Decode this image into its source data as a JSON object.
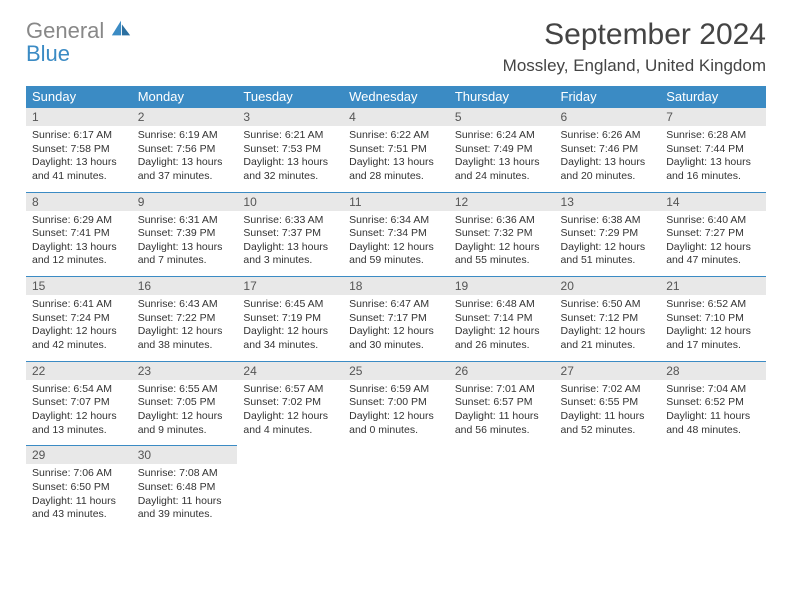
{
  "brand": {
    "line1": "General",
    "line2": "Blue"
  },
  "title": "September 2024",
  "location": "Mossley, England, United Kingdom",
  "colors": {
    "header_bg": "#3b8bc4",
    "header_text": "#ffffff",
    "daynum_bg": "#e8e8e8",
    "rule": "#3b8bc4",
    "logo_gray": "#888888",
    "logo_blue": "#3b8bc4"
  },
  "layout": {
    "columns": 7,
    "rows": 5,
    "start_offset": 0
  },
  "weekdays": [
    "Sunday",
    "Monday",
    "Tuesday",
    "Wednesday",
    "Thursday",
    "Friday",
    "Saturday"
  ],
  "days": [
    {
      "n": 1,
      "sunrise": "6:17 AM",
      "sunset": "7:58 PM",
      "dl_h": 13,
      "dl_m": 41
    },
    {
      "n": 2,
      "sunrise": "6:19 AM",
      "sunset": "7:56 PM",
      "dl_h": 13,
      "dl_m": 37
    },
    {
      "n": 3,
      "sunrise": "6:21 AM",
      "sunset": "7:53 PM",
      "dl_h": 13,
      "dl_m": 32
    },
    {
      "n": 4,
      "sunrise": "6:22 AM",
      "sunset": "7:51 PM",
      "dl_h": 13,
      "dl_m": 28
    },
    {
      "n": 5,
      "sunrise": "6:24 AM",
      "sunset": "7:49 PM",
      "dl_h": 13,
      "dl_m": 24
    },
    {
      "n": 6,
      "sunrise": "6:26 AM",
      "sunset": "7:46 PM",
      "dl_h": 13,
      "dl_m": 20
    },
    {
      "n": 7,
      "sunrise": "6:28 AM",
      "sunset": "7:44 PM",
      "dl_h": 13,
      "dl_m": 16
    },
    {
      "n": 8,
      "sunrise": "6:29 AM",
      "sunset": "7:41 PM",
      "dl_h": 13,
      "dl_m": 12
    },
    {
      "n": 9,
      "sunrise": "6:31 AM",
      "sunset": "7:39 PM",
      "dl_h": 13,
      "dl_m": 7
    },
    {
      "n": 10,
      "sunrise": "6:33 AM",
      "sunset": "7:37 PM",
      "dl_h": 13,
      "dl_m": 3
    },
    {
      "n": 11,
      "sunrise": "6:34 AM",
      "sunset": "7:34 PM",
      "dl_h": 12,
      "dl_m": 59
    },
    {
      "n": 12,
      "sunrise": "6:36 AM",
      "sunset": "7:32 PM",
      "dl_h": 12,
      "dl_m": 55
    },
    {
      "n": 13,
      "sunrise": "6:38 AM",
      "sunset": "7:29 PM",
      "dl_h": 12,
      "dl_m": 51
    },
    {
      "n": 14,
      "sunrise": "6:40 AM",
      "sunset": "7:27 PM",
      "dl_h": 12,
      "dl_m": 47
    },
    {
      "n": 15,
      "sunrise": "6:41 AM",
      "sunset": "7:24 PM",
      "dl_h": 12,
      "dl_m": 42
    },
    {
      "n": 16,
      "sunrise": "6:43 AM",
      "sunset": "7:22 PM",
      "dl_h": 12,
      "dl_m": 38
    },
    {
      "n": 17,
      "sunrise": "6:45 AM",
      "sunset": "7:19 PM",
      "dl_h": 12,
      "dl_m": 34
    },
    {
      "n": 18,
      "sunrise": "6:47 AM",
      "sunset": "7:17 PM",
      "dl_h": 12,
      "dl_m": 30
    },
    {
      "n": 19,
      "sunrise": "6:48 AM",
      "sunset": "7:14 PM",
      "dl_h": 12,
      "dl_m": 26
    },
    {
      "n": 20,
      "sunrise": "6:50 AM",
      "sunset": "7:12 PM",
      "dl_h": 12,
      "dl_m": 21
    },
    {
      "n": 21,
      "sunrise": "6:52 AM",
      "sunset": "7:10 PM",
      "dl_h": 12,
      "dl_m": 17
    },
    {
      "n": 22,
      "sunrise": "6:54 AM",
      "sunset": "7:07 PM",
      "dl_h": 12,
      "dl_m": 13
    },
    {
      "n": 23,
      "sunrise": "6:55 AM",
      "sunset": "7:05 PM",
      "dl_h": 12,
      "dl_m": 9
    },
    {
      "n": 24,
      "sunrise": "6:57 AM",
      "sunset": "7:02 PM",
      "dl_h": 12,
      "dl_m": 4
    },
    {
      "n": 25,
      "sunrise": "6:59 AM",
      "sunset": "7:00 PM",
      "dl_h": 12,
      "dl_m": 0
    },
    {
      "n": 26,
      "sunrise": "7:01 AM",
      "sunset": "6:57 PM",
      "dl_h": 11,
      "dl_m": 56
    },
    {
      "n": 27,
      "sunrise": "7:02 AM",
      "sunset": "6:55 PM",
      "dl_h": 11,
      "dl_m": 52
    },
    {
      "n": 28,
      "sunrise": "7:04 AM",
      "sunset": "6:52 PM",
      "dl_h": 11,
      "dl_m": 48
    },
    {
      "n": 29,
      "sunrise": "7:06 AM",
      "sunset": "6:50 PM",
      "dl_h": 11,
      "dl_m": 43
    },
    {
      "n": 30,
      "sunrise": "7:08 AM",
      "sunset": "6:48 PM",
      "dl_h": 11,
      "dl_m": 39
    }
  ]
}
